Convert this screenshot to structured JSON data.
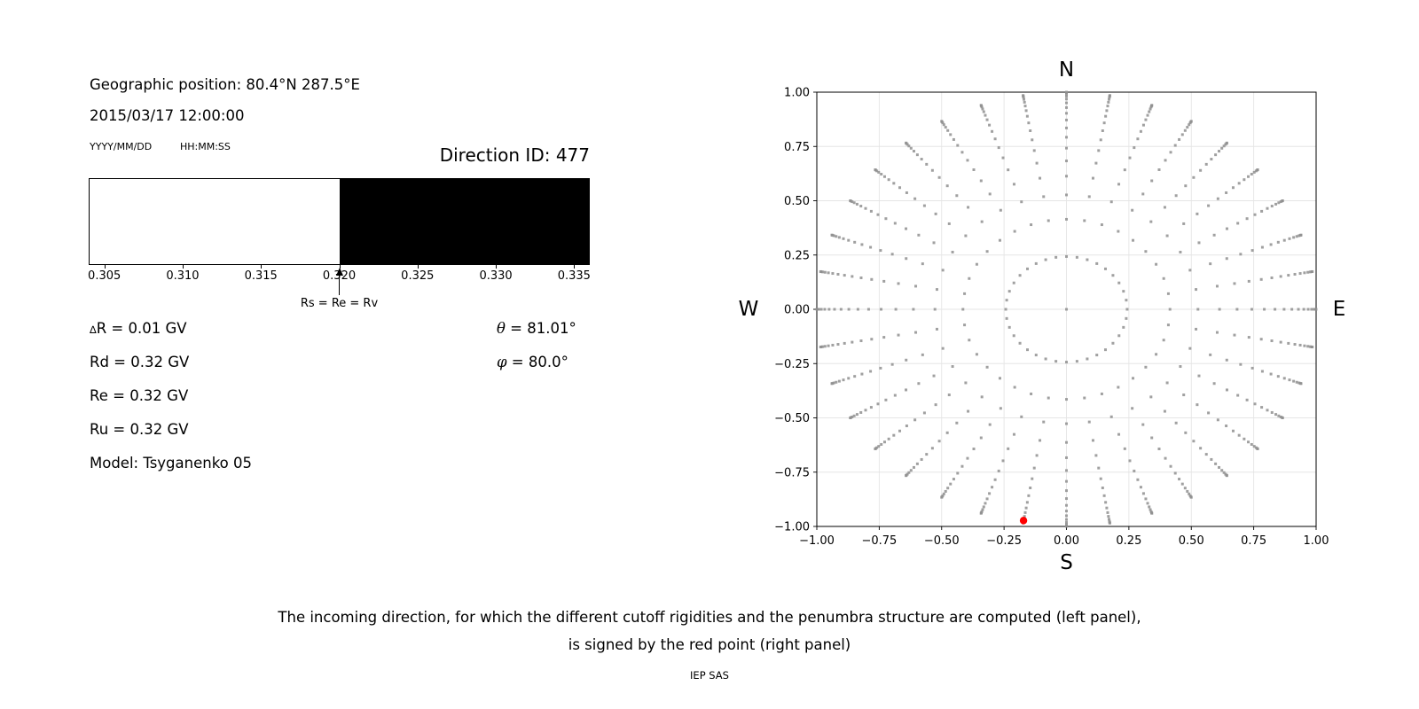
{
  "left_panel": {
    "geo_position": "Geographic position: 80.4°N 287.5°E",
    "datetime": "2015/03/17 12:00:00",
    "date_format": "YYYY/MM/DD",
    "time_format": "HH:MM:SS",
    "direction_id": "Direction ID: 477",
    "delta_r": {
      "sym": "∆",
      "rest": "R = 0.01 GV"
    },
    "rd": "Rd = 0.32 GV",
    "re": "Re = 0.32 GV",
    "ru": "Ru = 0.32 GV",
    "model": "Model: Tsyganenko 05",
    "theta": {
      "sym": "θ",
      "rest": " = 81.01°"
    },
    "phi": {
      "sym": "φ",
      "rest": " = 80.0°"
    }
  },
  "caption": {
    "line1": "The incoming direction, for which the different cutoff rigidities and the penumbra structure are computed (left panel),",
    "line2": "is signed by the red point (right panel)",
    "credit": "IEP SAS"
  },
  "chart_data": [
    {
      "name": "penumbra-structure",
      "type": "bar",
      "title": "",
      "xlabel": "",
      "xlim": [
        0.304,
        0.336
      ],
      "xticks": [
        0.305,
        0.31,
        0.315,
        0.32,
        0.325,
        0.33,
        0.335
      ],
      "xtick_labels": [
        "0.305",
        "0.310",
        "0.315",
        "0.320",
        "0.325",
        "0.330",
        "0.335"
      ],
      "segments": [
        {
          "from": 0.304,
          "to": 0.32,
          "color": "#ffffff"
        },
        {
          "from": 0.32,
          "to": 0.336,
          "color": "#000000"
        }
      ],
      "annotation": {
        "x": 0.32,
        "label": "Rs = Re = Rv"
      }
    },
    {
      "name": "incoming-directions",
      "type": "scatter",
      "title": "",
      "xlim": [
        -1.0,
        1.0
      ],
      "ylim": [
        -1.0,
        1.0
      ],
      "xticks": [
        -1.0,
        -0.75,
        -0.5,
        -0.25,
        0.0,
        0.25,
        0.5,
        0.75,
        1.0
      ],
      "yticks": [
        -1.0,
        -0.75,
        -0.5,
        -0.25,
        0.0,
        0.25,
        0.5,
        0.75,
        1.0
      ],
      "xtick_labels": [
        "−1.00",
        "−0.75",
        "−0.50",
        "−0.25",
        "0.00",
        "0.25",
        "0.50",
        "0.75",
        "1.00"
      ],
      "ytick_labels": [
        "−1.00",
        "−0.75",
        "−0.50",
        "−0.25",
        "0.00",
        "0.25",
        "0.50",
        "0.75",
        "1.00"
      ],
      "grid": true,
      "grid_color": "#e5e5e5",
      "compass": {
        "top": "N",
        "bottom": "S",
        "left": "W",
        "right": "E"
      },
      "dots": {
        "color": "#8f8f8f",
        "opacity": 0.85,
        "marker": "square",
        "marker_size_px": 3,
        "azimuth_start_deg": 0,
        "azimuth_step_deg": 10,
        "azimuth_count": 36,
        "cos_theta_steps": [
          0.97,
          0.91,
          0.85,
          0.79,
          0.73,
          0.67,
          0.61,
          0.55,
          0.49,
          0.43,
          0.37,
          0.31,
          0.25,
          0.19,
          0.13,
          0.07,
          0.01
        ],
        "center_dot": true,
        "projection": "x = sin(theta)·sin(az), y = sin(theta)·cos(az)"
      },
      "red_point": {
        "color": "#ff0000",
        "azimuth_deg": 190,
        "theta_deg": 81.01,
        "x": -0.172,
        "y": -0.973
      }
    }
  ]
}
